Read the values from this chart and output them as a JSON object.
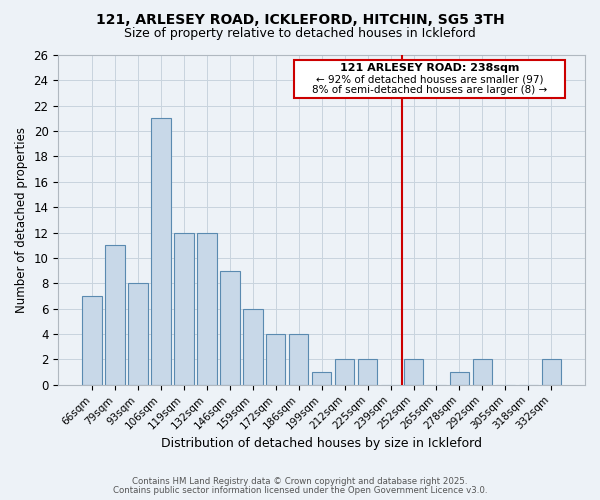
{
  "title1": "121, ARLESEY ROAD, ICKLEFORD, HITCHIN, SG5 3TH",
  "title2": "Size of property relative to detached houses in Ickleford",
  "xlabel": "Distribution of detached houses by size in Ickleford",
  "ylabel": "Number of detached properties",
  "categories": [
    "66sqm",
    "79sqm",
    "93sqm",
    "106sqm",
    "119sqm",
    "132sqm",
    "146sqm",
    "159sqm",
    "172sqm",
    "186sqm",
    "199sqm",
    "212sqm",
    "225sqm",
    "239sqm",
    "252sqm",
    "265sqm",
    "278sqm",
    "292sqm",
    "305sqm",
    "318sqm",
    "332sqm"
  ],
  "values": [
    7,
    11,
    8,
    21,
    12,
    12,
    9,
    6,
    4,
    4,
    1,
    2,
    2,
    0,
    2,
    0,
    1,
    2,
    0,
    0,
    2
  ],
  "bar_color": "#c8d8e8",
  "bar_edge_color": "#5a8ab0",
  "vline_color": "#cc0000",
  "vline_index": 13.5,
  "annotation_title": "121 ARLESEY ROAD: 238sqm",
  "annotation_line1": "← 92% of detached houses are smaller (97)",
  "annotation_line2": "8% of semi-detached houses are larger (8) →",
  "annotation_box_edge": "#cc0000",
  "ylim": [
    0,
    26
  ],
  "yticks": [
    0,
    2,
    4,
    6,
    8,
    10,
    12,
    14,
    16,
    18,
    20,
    22,
    24,
    26
  ],
  "footer1": "Contains HM Land Registry data © Crown copyright and database right 2025.",
  "footer2": "Contains public sector information licensed under the Open Government Licence v3.0.",
  "grid_color": "#c8d4de",
  "bg_color": "#edf2f7"
}
